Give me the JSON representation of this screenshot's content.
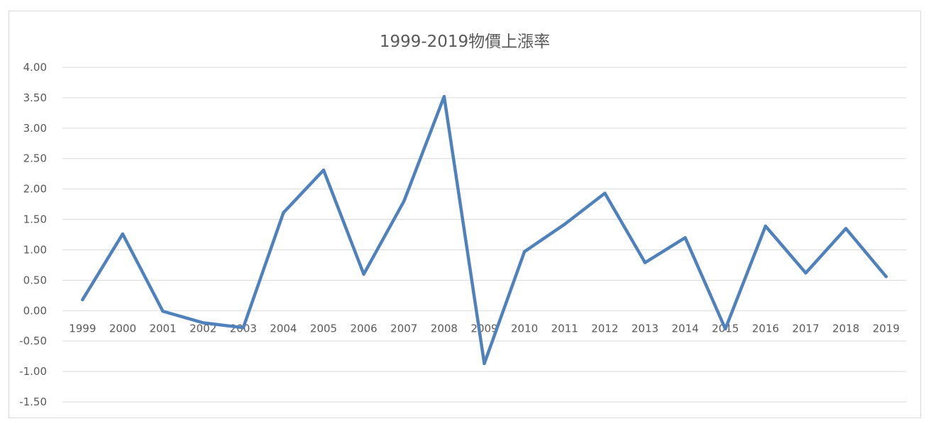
{
  "chart_data": {
    "type": "line",
    "title": "1999-2019物價上漲率",
    "xlabel": "",
    "ylabel": "",
    "ylim": [
      -1.5,
      4.0
    ],
    "y_ticks": [
      "4.00",
      "3.50",
      "3.00",
      "2.50",
      "2.00",
      "1.50",
      "1.00",
      "0.50",
      "0.00",
      "-0.50",
      "-1.00",
      "-1.50"
    ],
    "categories": [
      "1999",
      "2000",
      "2001",
      "2002",
      "2003",
      "2004",
      "2005",
      "2006",
      "2007",
      "2008",
      "2009",
      "2010",
      "2011",
      "2012",
      "2013",
      "2014",
      "2015",
      "2016",
      "2017",
      "2018",
      "2019"
    ],
    "series": [
      {
        "values": [
          0.18,
          1.26,
          -0.01,
          -0.2,
          -0.28,
          1.61,
          2.31,
          0.6,
          1.8,
          3.52,
          -0.87,
          0.97,
          1.42,
          1.93,
          0.79,
          1.2,
          -0.3,
          1.39,
          0.62,
          1.35,
          0.56
        ],
        "color": "#4f81bd"
      }
    ],
    "grid": true,
    "legend": "none",
    "x_labels_at_zero": true
  }
}
